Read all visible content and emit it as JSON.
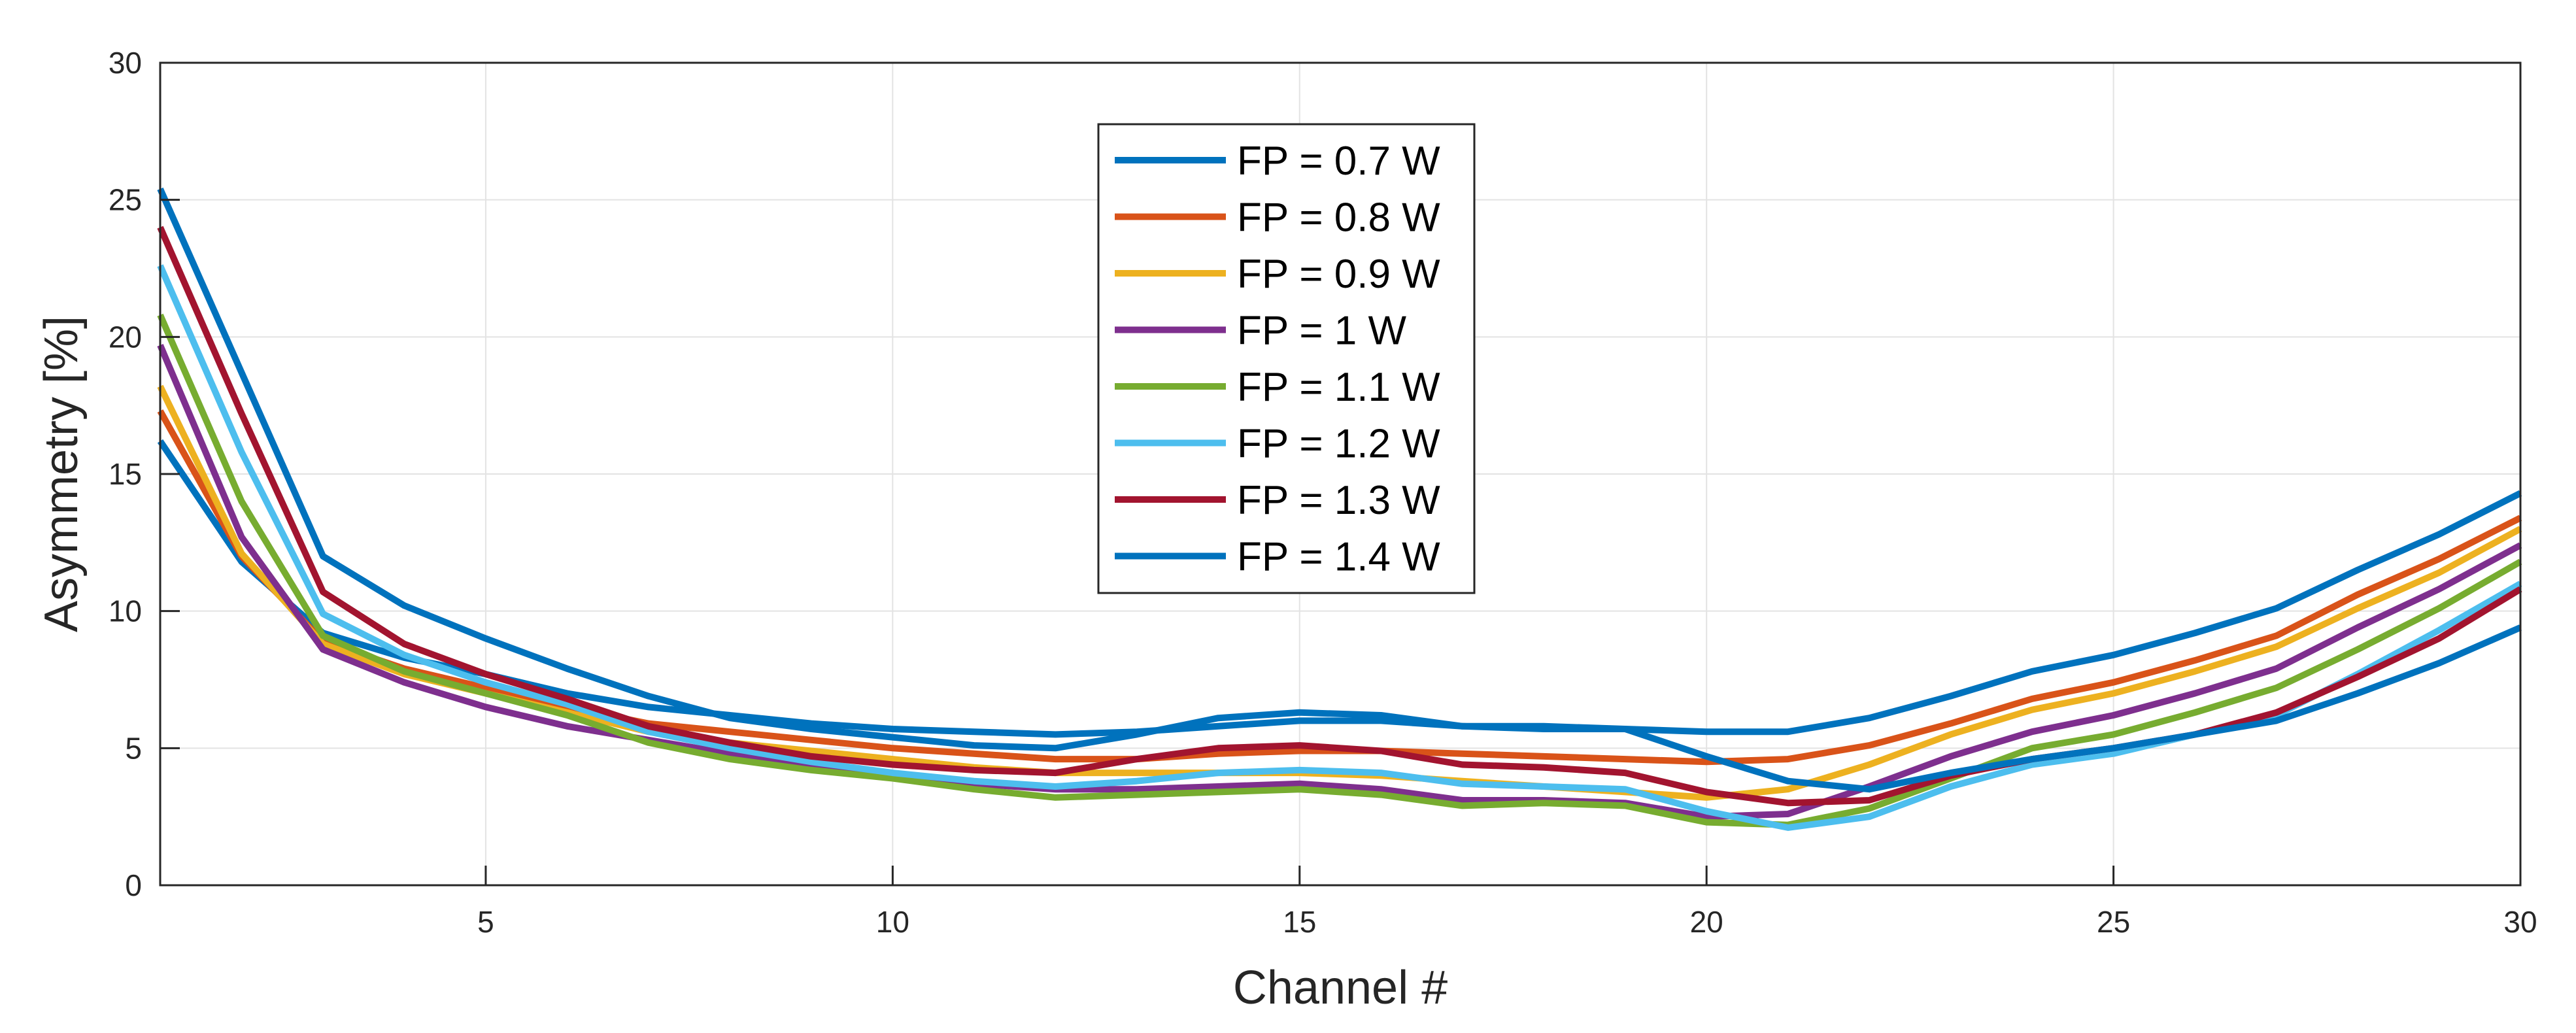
{
  "chart_data": {
    "type": "line",
    "title": "",
    "xlabel": "Channel #",
    "ylabel": "Asymmetry [%]",
    "xlim": [
      1,
      30
    ],
    "ylim": [
      0,
      30
    ],
    "xticks": [
      5,
      10,
      15,
      20,
      25,
      30
    ],
    "yticks": [
      0,
      5,
      10,
      15,
      20,
      25,
      30
    ],
    "grid": true,
    "legend_position": "top-center",
    "x": [
      1,
      2,
      3,
      4,
      5,
      6,
      7,
      8,
      9,
      10,
      11,
      12,
      13,
      14,
      15,
      16,
      17,
      18,
      19,
      20,
      21,
      22,
      23,
      24,
      25,
      26,
      27,
      28,
      29,
      30
    ],
    "series": [
      {
        "name": "FP = 0.7 W",
        "color": "#0072BD",
        "values": [
          16.2,
          11.8,
          9.2,
          8.3,
          7.7,
          7.0,
          6.5,
          6.2,
          5.9,
          5.7,
          5.6,
          5.5,
          5.6,
          5.8,
          6.0,
          6.0,
          5.8,
          5.8,
          5.7,
          5.6,
          5.6,
          6.1,
          6.9,
          7.8,
          8.4,
          9.2,
          10.1,
          11.5,
          12.8,
          14.3
        ]
      },
      {
        "name": "FP = 0.8 W",
        "color": "#D95319",
        "values": [
          17.3,
          12.0,
          8.9,
          7.9,
          7.2,
          6.5,
          5.9,
          5.6,
          5.3,
          5.0,
          4.8,
          4.6,
          4.6,
          4.8,
          4.9,
          4.9,
          4.8,
          4.7,
          4.6,
          4.5,
          4.6,
          5.1,
          5.9,
          6.8,
          7.4,
          8.2,
          9.1,
          10.6,
          11.9,
          13.4
        ]
      },
      {
        "name": "FP = 0.9 W",
        "color": "#EDB120",
        "values": [
          18.2,
          12.1,
          8.8,
          7.7,
          7.0,
          6.3,
          5.6,
          5.2,
          4.9,
          4.6,
          4.3,
          4.1,
          4.1,
          4.1,
          4.1,
          4.0,
          3.8,
          3.6,
          3.4,
          3.2,
          3.5,
          4.4,
          5.5,
          6.4,
          7.0,
          7.8,
          8.7,
          10.1,
          11.4,
          13.0
        ]
      },
      {
        "name": "FP = 1 W",
        "color": "#7E2F8E",
        "values": [
          19.7,
          12.7,
          8.6,
          7.4,
          6.5,
          5.8,
          5.3,
          4.8,
          4.4,
          4.0,
          3.7,
          3.5,
          3.5,
          3.6,
          3.7,
          3.5,
          3.1,
          3.1,
          3.0,
          2.5,
          2.6,
          3.6,
          4.7,
          5.6,
          6.2,
          7.0,
          7.9,
          9.4,
          10.8,
          12.4
        ]
      },
      {
        "name": "FP = 1.1 W",
        "color": "#77AC30",
        "values": [
          20.8,
          14.0,
          9.1,
          7.8,
          7.0,
          6.2,
          5.2,
          4.6,
          4.2,
          3.9,
          3.5,
          3.2,
          3.3,
          3.4,
          3.5,
          3.3,
          2.9,
          3.0,
          2.9,
          2.3,
          2.2,
          2.8,
          3.9,
          5.0,
          5.5,
          6.3,
          7.2,
          8.6,
          10.1,
          11.8
        ]
      },
      {
        "name": "FP = 1.2 W",
        "color": "#4DBEEE",
        "values": [
          22.6,
          15.8,
          9.9,
          8.4,
          7.4,
          6.6,
          5.6,
          5.0,
          4.5,
          4.1,
          3.8,
          3.6,
          3.8,
          4.1,
          4.2,
          4.1,
          3.7,
          3.6,
          3.5,
          2.7,
          2.1,
          2.5,
          3.6,
          4.4,
          4.8,
          5.5,
          6.2,
          7.7,
          9.3,
          11.0
        ]
      },
      {
        "name": "FP = 1.3 W",
        "color": "#A2142F",
        "values": [
          24.0,
          17.2,
          10.7,
          8.8,
          7.7,
          6.8,
          5.8,
          5.2,
          4.7,
          4.4,
          4.2,
          4.1,
          4.6,
          5.0,
          5.1,
          4.9,
          4.4,
          4.3,
          4.1,
          3.4,
          3.0,
          3.1,
          4.0,
          4.6,
          5.0,
          5.5,
          6.3,
          7.6,
          9.0,
          10.8
        ]
      },
      {
        "name": "FP = 1.4 W",
        "color": "#0072BD",
        "values": [
          25.4,
          18.7,
          12.0,
          10.2,
          9.0,
          7.9,
          6.9,
          6.1,
          5.7,
          5.4,
          5.1,
          5.0,
          5.5,
          6.1,
          6.3,
          6.2,
          5.8,
          5.7,
          5.7,
          4.7,
          3.8,
          3.5,
          4.1,
          4.6,
          5.0,
          5.5,
          6.0,
          7.0,
          8.1,
          9.4
        ]
      }
    ]
  }
}
